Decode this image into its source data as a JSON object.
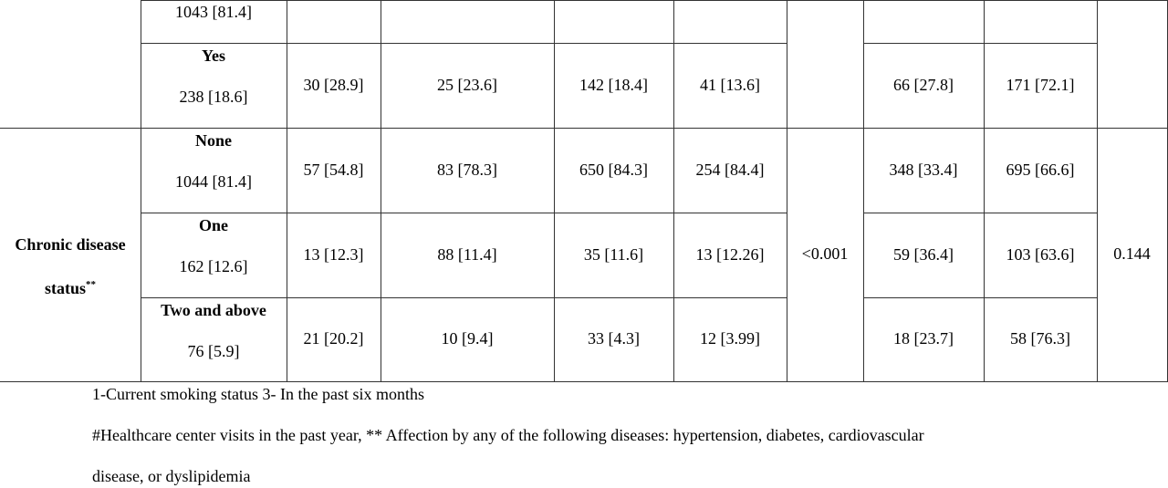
{
  "table": {
    "groups": [
      {
        "rows": [
          {
            "count": "1043 [81.4]"
          },
          {
            "label": "Yes",
            "count": "238 [18.6]",
            "values": [
              "30 [28.9]",
              "25 [23.6]",
              "142 [18.4]",
              "41 [13.6]",
              "66 [27.8]",
              "171 [72.1]"
            ]
          }
        ]
      },
      {
        "label_lines": [
          "Chronic disease",
          "status"
        ],
        "label_mark": "**",
        "p_values": [
          "<0.001",
          "0.144"
        ],
        "rows": [
          {
            "label": "None",
            "count": "1044 [81.4]",
            "values": [
              "57 [54.8]",
              "83 [78.3]",
              "650 [84.3]",
              "254 [84.4]",
              "348 [33.4]",
              "695 [66.6]"
            ]
          },
          {
            "label": "One",
            "count": "162 [12.6]",
            "values": [
              "13 [12.3]",
              "88 [11.4]",
              "35 [11.6]",
              "13 [12.26]",
              "59 [36.4]",
              "103 [63.6]"
            ]
          },
          {
            "label": "Two and above",
            "count": "76 [5.9]",
            "values": [
              "21 [20.2]",
              "10 [9.4]",
              "33 [4.3]",
              "12 [3.99]",
              "18 [23.7]",
              "58 [76.3]"
            ]
          }
        ]
      }
    ]
  },
  "footnotes": [
    "1-Current smoking status 3- In the past six months",
    "#Healthcare center visits in the past year, ** Affection by any of the following diseases: hypertension, diabetes, cardiovascular",
    "disease, or dyslipidemia"
  ]
}
